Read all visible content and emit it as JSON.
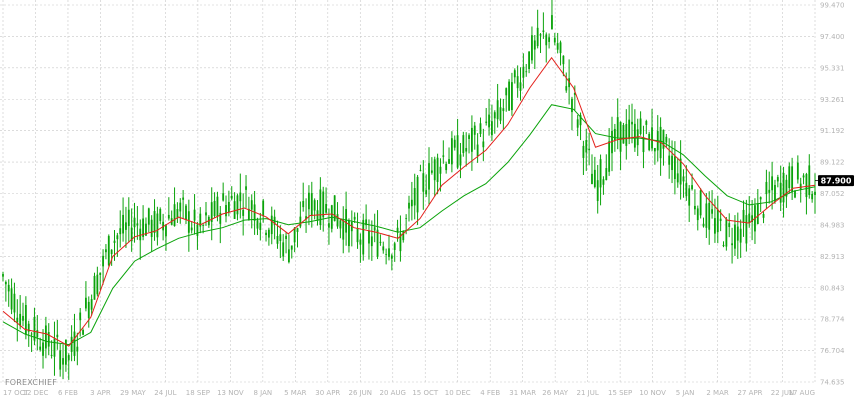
{
  "brand": "FOREXCHIEF",
  "current_price_label": "87.900",
  "colors": {
    "candle": "#0aa30a",
    "ma_fast": "#e3201b",
    "ma_slow": "#0aa30a",
    "grid": "#c8c8c8",
    "tick_text": "#b4b4b4",
    "price_tag_bg": "#000000"
  },
  "chart_data": {
    "type": "candlestick",
    "title": "",
    "xlabel": "",
    "ylabel": "",
    "ylim": [
      74.635,
      99.47
    ],
    "y_ticks": [
      "99.470",
      "97.400",
      "95.331",
      "93.261",
      "91.192",
      "89.122",
      "87.052",
      "84.983",
      "82.913",
      "80.843",
      "78.774",
      "76.704",
      "74.635"
    ],
    "x_ticks": [
      "17 OCT",
      "12 DEC",
      "6 FEB",
      "3 APR",
      "29 MAY",
      "24 JUL",
      "18 SEP",
      "13 NOV",
      "8 JAN",
      "5 MAR",
      "30 APR",
      "26 JUN",
      "20 AUG",
      "15 OCT",
      "10 DEC",
      "4 FEB",
      "31 MAR",
      "26 MAY",
      "21 JUL",
      "15 SEP",
      "10 NOV",
      "5 JAN",
      "2 MAR",
      "27 APR",
      "22 JUN",
      "17 AUG"
    ],
    "grid": true,
    "current_price": 87.9,
    "series": [
      {
        "name": "",
        "role": "price",
        "values": [
          81.6,
          78.6,
          77.2,
          76.2,
          80.3,
          84.0,
          85.1,
          84.9,
          86.0,
          84.6,
          86.3,
          86.8,
          85.3,
          83.4,
          86.4,
          85.9,
          84.4,
          84.0,
          83.7,
          87.4,
          89.4,
          89.9,
          91.1,
          93.1,
          96.2,
          97.9,
          93.1,
          87.4,
          90.9,
          91.1,
          90.3,
          88.1,
          85.6,
          84.4,
          85.0,
          87.1,
          88.0,
          87.7
        ]
      },
      {
        "name": "",
        "role": "ma-fast",
        "values": [
          79.3,
          78.1,
          77.8,
          77.0,
          78.9,
          82.9,
          84.2,
          84.6,
          85.5,
          85.0,
          85.7,
          86.1,
          85.5,
          84.4,
          85.6,
          85.7,
          84.8,
          84.5,
          84.1,
          85.4,
          87.6,
          88.8,
          89.9,
          91.6,
          94.0,
          96.0,
          94.0,
          90.1,
          90.6,
          90.8,
          90.4,
          89.0,
          86.9,
          85.3,
          85.1,
          86.3,
          87.4,
          87.6
        ]
      },
      {
        "name": "",
        "role": "ma-slow",
        "values": [
          78.6,
          77.8,
          77.3,
          77.1,
          77.9,
          80.8,
          82.6,
          83.4,
          84.1,
          84.5,
          84.8,
          85.3,
          85.4,
          85.0,
          85.2,
          85.5,
          85.2,
          84.9,
          84.5,
          84.8,
          85.9,
          86.9,
          87.7,
          89.1,
          90.9,
          92.9,
          92.6,
          91.0,
          90.7,
          90.7,
          90.5,
          89.6,
          88.2,
          86.9,
          86.3,
          86.5,
          87.2,
          87.5
        ]
      }
    ]
  }
}
